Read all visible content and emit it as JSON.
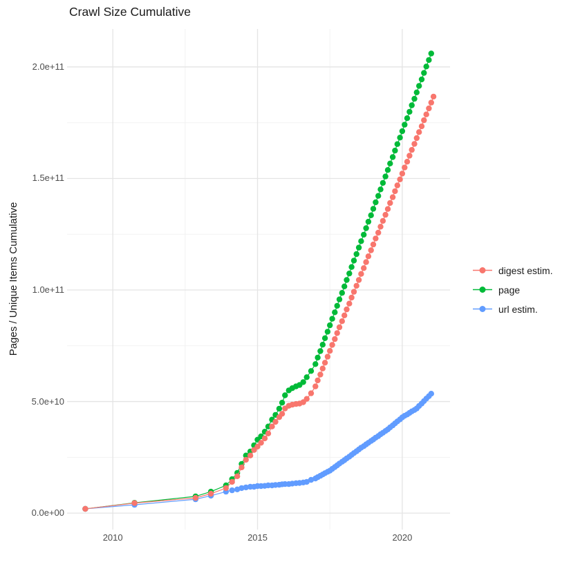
{
  "chart_data": {
    "type": "scatter",
    "title": "Crawl Size Cumulative",
    "xlabel": "",
    "ylabel": "Pages / Unique Items Cumulative",
    "grid": true,
    "legend_position": "right",
    "x_axis": {
      "tick_values": [
        2010,
        2015,
        2020
      ],
      "tick_labels": [
        "2010",
        "2015",
        "2020"
      ],
      "minor_tick_values": [
        2012.5,
        2017.5
      ],
      "range": [
        2008.42,
        2021.65
      ]
    },
    "y_axis": {
      "tick_values": [
        0,
        50000000000.0,
        100000000000.0,
        150000000000.0,
        200000000000.0
      ],
      "tick_labels": [
        "0.0e+00",
        "5.0e+10",
        "1.0e+11",
        "1.5e+11",
        "2.0e+11"
      ],
      "minor_tick_values": [
        25000000000.0,
        75000000000.0,
        125000000000.0,
        175000000000.0
      ],
      "range": [
        -7400000000.0,
        217000000000.0
      ]
    },
    "series": [
      {
        "name": "digest estim.",
        "color": "#F8766D",
        "points": [
          [
            2009.05,
            1900000000.0
          ],
          [
            2010.75,
            4500000000.0
          ],
          [
            2012.86,
            6800000000.0
          ],
          [
            2013.39,
            8700000000.0
          ],
          [
            2013.91,
            11200000000.0
          ],
          [
            2014.12,
            14000000000.0
          ],
          [
            2014.3,
            16500000000.0
          ],
          [
            2014.45,
            20500000000.0
          ],
          [
            2014.6,
            23900000000.0
          ],
          [
            2014.75,
            25800000000.0
          ],
          [
            2014.88,
            28300000000.0
          ],
          [
            2015.0,
            29800000000.0
          ],
          [
            2015.12,
            31500000000.0
          ],
          [
            2015.25,
            33500000000.0
          ],
          [
            2015.37,
            35700000000.0
          ],
          [
            2015.5,
            38800000000.0
          ],
          [
            2015.62,
            40900000000.0
          ],
          [
            2015.75,
            43000000000.0
          ],
          [
            2015.85,
            44500000000.0
          ],
          [
            2015.95,
            46900000000.0
          ],
          [
            2016.08,
            48100000000.0
          ],
          [
            2016.2,
            48600000000.0
          ],
          [
            2016.33,
            48900000000.0
          ],
          [
            2016.45,
            49100000000.0
          ],
          [
            2016.58,
            49700000000.0
          ],
          [
            2016.7,
            51200000000.0
          ],
          [
            2016.85,
            53700000000.0
          ],
          [
            2017.0,
            56800000000.0
          ],
          [
            2017.08,
            59500000000.0
          ],
          [
            2017.17,
            62100000000.0
          ],
          [
            2017.25,
            64800000000.0
          ],
          [
            2017.33,
            67400000000.0
          ],
          [
            2017.42,
            70100000000.0
          ],
          [
            2017.5,
            72700000000.0
          ],
          [
            2017.58,
            75400000000.0
          ],
          [
            2017.67,
            78000000000.0
          ],
          [
            2017.75,
            80700000000.0
          ],
          [
            2017.83,
            83300000000.0
          ],
          [
            2017.92,
            86000000000.0
          ],
          [
            2018.0,
            88600000000.0
          ],
          [
            2018.08,
            91300000000.0
          ],
          [
            2018.17,
            93900000000.0
          ],
          [
            2018.25,
            96600000000.0
          ],
          [
            2018.33,
            99200000000.0
          ],
          [
            2018.42,
            101900000000.0
          ],
          [
            2018.5,
            104500000000.0
          ],
          [
            2018.58,
            107200000000.0
          ],
          [
            2018.67,
            109800000000.0
          ],
          [
            2018.75,
            112500000000.0
          ],
          [
            2018.83,
            115100000000.0
          ],
          [
            2018.92,
            117800000000.0
          ],
          [
            2019.0,
            120400000000.0
          ],
          [
            2019.08,
            123100000000.0
          ],
          [
            2019.17,
            125700000000.0
          ],
          [
            2019.25,
            128400000000.0
          ],
          [
            2019.33,
            131000000000.0
          ],
          [
            2019.42,
            133700000000.0
          ],
          [
            2019.5,
            136300000000.0
          ],
          [
            2019.58,
            139000000000.0
          ],
          [
            2019.67,
            141600000000.0
          ],
          [
            2019.75,
            144300000000.0
          ],
          [
            2019.83,
            146900000000.0
          ],
          [
            2019.92,
            149600000000.0
          ],
          [
            2020.0,
            152200000000.0
          ],
          [
            2020.08,
            154900000000.0
          ],
          [
            2020.17,
            157500000000.0
          ],
          [
            2020.25,
            160200000000.0
          ],
          [
            2020.33,
            162800000000.0
          ],
          [
            2020.42,
            165500000000.0
          ],
          [
            2020.5,
            168100000000.0
          ],
          [
            2020.58,
            170800000000.0
          ],
          [
            2020.67,
            173400000000.0
          ],
          [
            2020.75,
            176100000000.0
          ],
          [
            2020.83,
            178700000000.0
          ],
          [
            2020.92,
            181400000000.0
          ],
          [
            2021.0,
            184000000000.0
          ],
          [
            2021.08,
            186700000000.0
          ]
        ]
      },
      {
        "name": "page",
        "color": "#00BA38",
        "points": [
          [
            2009.05,
            1900000000.0
          ],
          [
            2010.75,
            4600000000.0
          ],
          [
            2012.86,
            7500000000.0
          ],
          [
            2013.39,
            9600000000.0
          ],
          [
            2013.91,
            12400000000.0
          ],
          [
            2014.12,
            15200000000.0
          ],
          [
            2014.3,
            18000000000.0
          ],
          [
            2014.45,
            22000000000.0
          ],
          [
            2014.6,
            25800000000.0
          ],
          [
            2014.75,
            27600000000.0
          ],
          [
            2014.88,
            30400000000.0
          ],
          [
            2015.0,
            32900000000.0
          ],
          [
            2015.12,
            34400000000.0
          ],
          [
            2015.25,
            36500000000.0
          ],
          [
            2015.37,
            38800000000.0
          ],
          [
            2015.5,
            41900000000.0
          ],
          [
            2015.62,
            44000000000.0
          ],
          [
            2015.75,
            46800000000.0
          ],
          [
            2015.85,
            49500000000.0
          ],
          [
            2015.95,
            52800000000.0
          ],
          [
            2016.08,
            55000000000.0
          ],
          [
            2016.2,
            56000000000.0
          ],
          [
            2016.33,
            56800000000.0
          ],
          [
            2016.45,
            57400000000.0
          ],
          [
            2016.58,
            58700000000.0
          ],
          [
            2016.7,
            60900000000.0
          ],
          [
            2016.85,
            63700000000.0
          ],
          [
            2017.0,
            66800000000.0
          ],
          [
            2017.08,
            69700000000.0
          ],
          [
            2017.17,
            72600000000.0
          ],
          [
            2017.25,
            75500000000.0
          ],
          [
            2017.33,
            78400000000.0
          ],
          [
            2017.42,
            81300000000.0
          ],
          [
            2017.5,
            84200000000.0
          ],
          [
            2017.58,
            87100000000.0
          ],
          [
            2017.67,
            90000000000.0
          ],
          [
            2017.75,
            92900000000.0
          ],
          [
            2017.83,
            95800000000.0
          ],
          [
            2017.92,
            98700000000.0
          ],
          [
            2018.0,
            101600000000.0
          ],
          [
            2018.08,
            104500000000.0
          ],
          [
            2018.17,
            107400000000.0
          ],
          [
            2018.25,
            110300000000.0
          ],
          [
            2018.33,
            113200000000.0
          ],
          [
            2018.42,
            116100000000.0
          ],
          [
            2018.5,
            119000000000.0
          ],
          [
            2018.58,
            121900000000.0
          ],
          [
            2018.67,
            124800000000.0
          ],
          [
            2018.75,
            127700000000.0
          ],
          [
            2018.83,
            130600000000.0
          ],
          [
            2018.92,
            133500000000.0
          ],
          [
            2019.0,
            136400000000.0
          ],
          [
            2019.08,
            139300000000.0
          ],
          [
            2019.17,
            142200000000.0
          ],
          [
            2019.25,
            145100000000.0
          ],
          [
            2019.33,
            148000000000.0
          ],
          [
            2019.42,
            150900000000.0
          ],
          [
            2019.5,
            153800000000.0
          ],
          [
            2019.58,
            156700000000.0
          ],
          [
            2019.67,
            159600000000.0
          ],
          [
            2019.75,
            162500000000.0
          ],
          [
            2019.83,
            165400000000.0
          ],
          [
            2019.92,
            168300000000.0
          ],
          [
            2020.0,
            171200000000.0
          ],
          [
            2020.08,
            174100000000.0
          ],
          [
            2020.17,
            177000000000.0
          ],
          [
            2020.25,
            179900000000.0
          ],
          [
            2020.33,
            182800000000.0
          ],
          [
            2020.42,
            185700000000.0
          ],
          [
            2020.5,
            188600000000.0
          ],
          [
            2020.58,
            191500000000.0
          ],
          [
            2020.67,
            194400000000.0
          ],
          [
            2020.75,
            197300000000.0
          ],
          [
            2020.83,
            200200000000.0
          ],
          [
            2020.92,
            203100000000.0
          ],
          [
            2021.0,
            206000000000.0
          ]
        ]
      },
      {
        "name": "url estim.",
        "color": "#619CFF",
        "points": [
          [
            2009.05,
            1900000000.0
          ],
          [
            2010.75,
            3700000000.0
          ],
          [
            2012.86,
            6200000000.0
          ],
          [
            2013.39,
            7800000000.0
          ],
          [
            2013.91,
            9600000000.0
          ],
          [
            2014.12,
            10200000000.0
          ],
          [
            2014.3,
            10600000000.0
          ],
          [
            2014.45,
            11200000000.0
          ],
          [
            2014.6,
            11500000000.0
          ],
          [
            2014.75,
            11800000000.0
          ],
          [
            2014.88,
            11800000000.0
          ],
          [
            2015.0,
            12100000000.0
          ],
          [
            2015.12,
            12100000000.0
          ],
          [
            2015.25,
            12200000000.0
          ],
          [
            2015.37,
            12400000000.0
          ],
          [
            2015.5,
            12400000000.0
          ],
          [
            2015.62,
            12600000000.0
          ],
          [
            2015.75,
            12700000000.0
          ],
          [
            2015.85,
            12900000000.0
          ],
          [
            2015.95,
            13000000000.0
          ],
          [
            2016.08,
            13000000000.0
          ],
          [
            2016.2,
            13200000000.0
          ],
          [
            2016.33,
            13400000000.0
          ],
          [
            2016.45,
            13500000000.0
          ],
          [
            2016.58,
            13700000000.0
          ],
          [
            2016.7,
            14000000000.0
          ],
          [
            2016.85,
            14900000000.0
          ],
          [
            2017.0,
            15500000000.0
          ],
          [
            2017.08,
            16100000000.0
          ],
          [
            2017.17,
            16700000000.0
          ],
          [
            2017.25,
            17300000000.0
          ],
          [
            2017.33,
            17900000000.0
          ],
          [
            2017.42,
            18500000000.0
          ],
          [
            2017.5,
            19000000000.0
          ],
          [
            2017.58,
            19800000000.0
          ],
          [
            2017.67,
            20600000000.0
          ],
          [
            2017.75,
            21400000000.0
          ],
          [
            2017.83,
            22200000000.0
          ],
          [
            2017.92,
            23000000000.0
          ],
          [
            2018.0,
            23700000000.0
          ],
          [
            2018.08,
            24500000000.0
          ],
          [
            2018.17,
            25300000000.0
          ],
          [
            2018.25,
            26100000000.0
          ],
          [
            2018.33,
            26900000000.0
          ],
          [
            2018.42,
            27700000000.0
          ],
          [
            2018.5,
            28500000000.0
          ],
          [
            2018.58,
            29300000000.0
          ],
          [
            2018.67,
            30000000000.0
          ],
          [
            2018.75,
            30800000000.0
          ],
          [
            2018.83,
            31500000000.0
          ],
          [
            2018.92,
            32300000000.0
          ],
          [
            2019.0,
            33000000000.0
          ],
          [
            2019.08,
            33800000000.0
          ],
          [
            2019.17,
            34500000000.0
          ],
          [
            2019.25,
            35300000000.0
          ],
          [
            2019.33,
            36000000000.0
          ],
          [
            2019.42,
            36800000000.0
          ],
          [
            2019.5,
            37500000000.0
          ],
          [
            2019.58,
            38400000000.0
          ],
          [
            2019.67,
            39300000000.0
          ],
          [
            2019.75,
            40200000000.0
          ],
          [
            2019.83,
            41100000000.0
          ],
          [
            2019.92,
            42000000000.0
          ],
          [
            2020.0,
            42900000000.0
          ],
          [
            2020.08,
            43600000000.0
          ],
          [
            2020.17,
            44200000000.0
          ],
          [
            2020.25,
            44900000000.0
          ],
          [
            2020.33,
            45600000000.0
          ],
          [
            2020.42,
            46200000000.0
          ],
          [
            2020.5,
            46900000000.0
          ],
          [
            2020.58,
            48000000000.0
          ],
          [
            2020.67,
            49100000000.0
          ],
          [
            2020.75,
            50200000000.0
          ],
          [
            2020.83,
            51300000000.0
          ],
          [
            2020.92,
            52400000000.0
          ],
          [
            2021.0,
            53500000000.0
          ]
        ]
      }
    ],
    "style": {
      "major_grid_color": "#e4e4e4",
      "minor_grid_color": "#f2f2f2",
      "background": "#ffffff",
      "point_radius": 4.2
    }
  }
}
